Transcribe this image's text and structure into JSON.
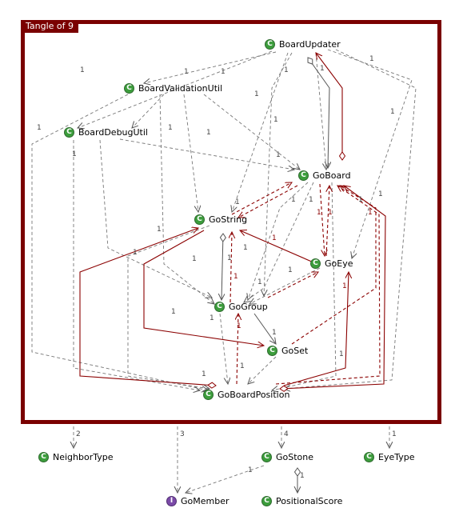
{
  "tangle": {
    "title": "Tangle of 9"
  },
  "nodes": {
    "board_updater": {
      "label": "BoardUpdater",
      "badge": "C"
    },
    "board_validation_util": {
      "label": "BoardValidationUtil",
      "badge": "C"
    },
    "board_debug_util": {
      "label": "BoardDebugUtil",
      "badge": "C"
    },
    "go_board": {
      "label": "GoBoard",
      "badge": "C"
    },
    "go_string": {
      "label": "GoString",
      "badge": "C"
    },
    "go_eye": {
      "label": "GoEye",
      "badge": "C"
    },
    "go_group": {
      "label": "GoGroup",
      "badge": "C"
    },
    "go_set": {
      "label": "GoSet",
      "badge": "C"
    },
    "go_board_position": {
      "label": "GoBoardPosition",
      "badge": "C"
    },
    "neighbor_type": {
      "label": "NeighborType",
      "badge": "C"
    },
    "go_stone": {
      "label": "GoStone",
      "badge": "C"
    },
    "eye_type": {
      "label": "EyeType",
      "badge": "C"
    },
    "go_member": {
      "label": "GoMember",
      "badge": "I"
    },
    "positional_score": {
      "label": "PositionalScore",
      "badge": "C"
    }
  },
  "outside_counts": {
    "neighbor_type": "2",
    "go_member": "3",
    "go_stone": "4",
    "eye_type": "1"
  },
  "multiplicity": "1",
  "colors": {
    "frame": "#7a0000",
    "dependency": "#666666",
    "cycle": "#8b0000",
    "class_badge": "#3c9d3c",
    "interface_badge": "#7b4aa8"
  }
}
